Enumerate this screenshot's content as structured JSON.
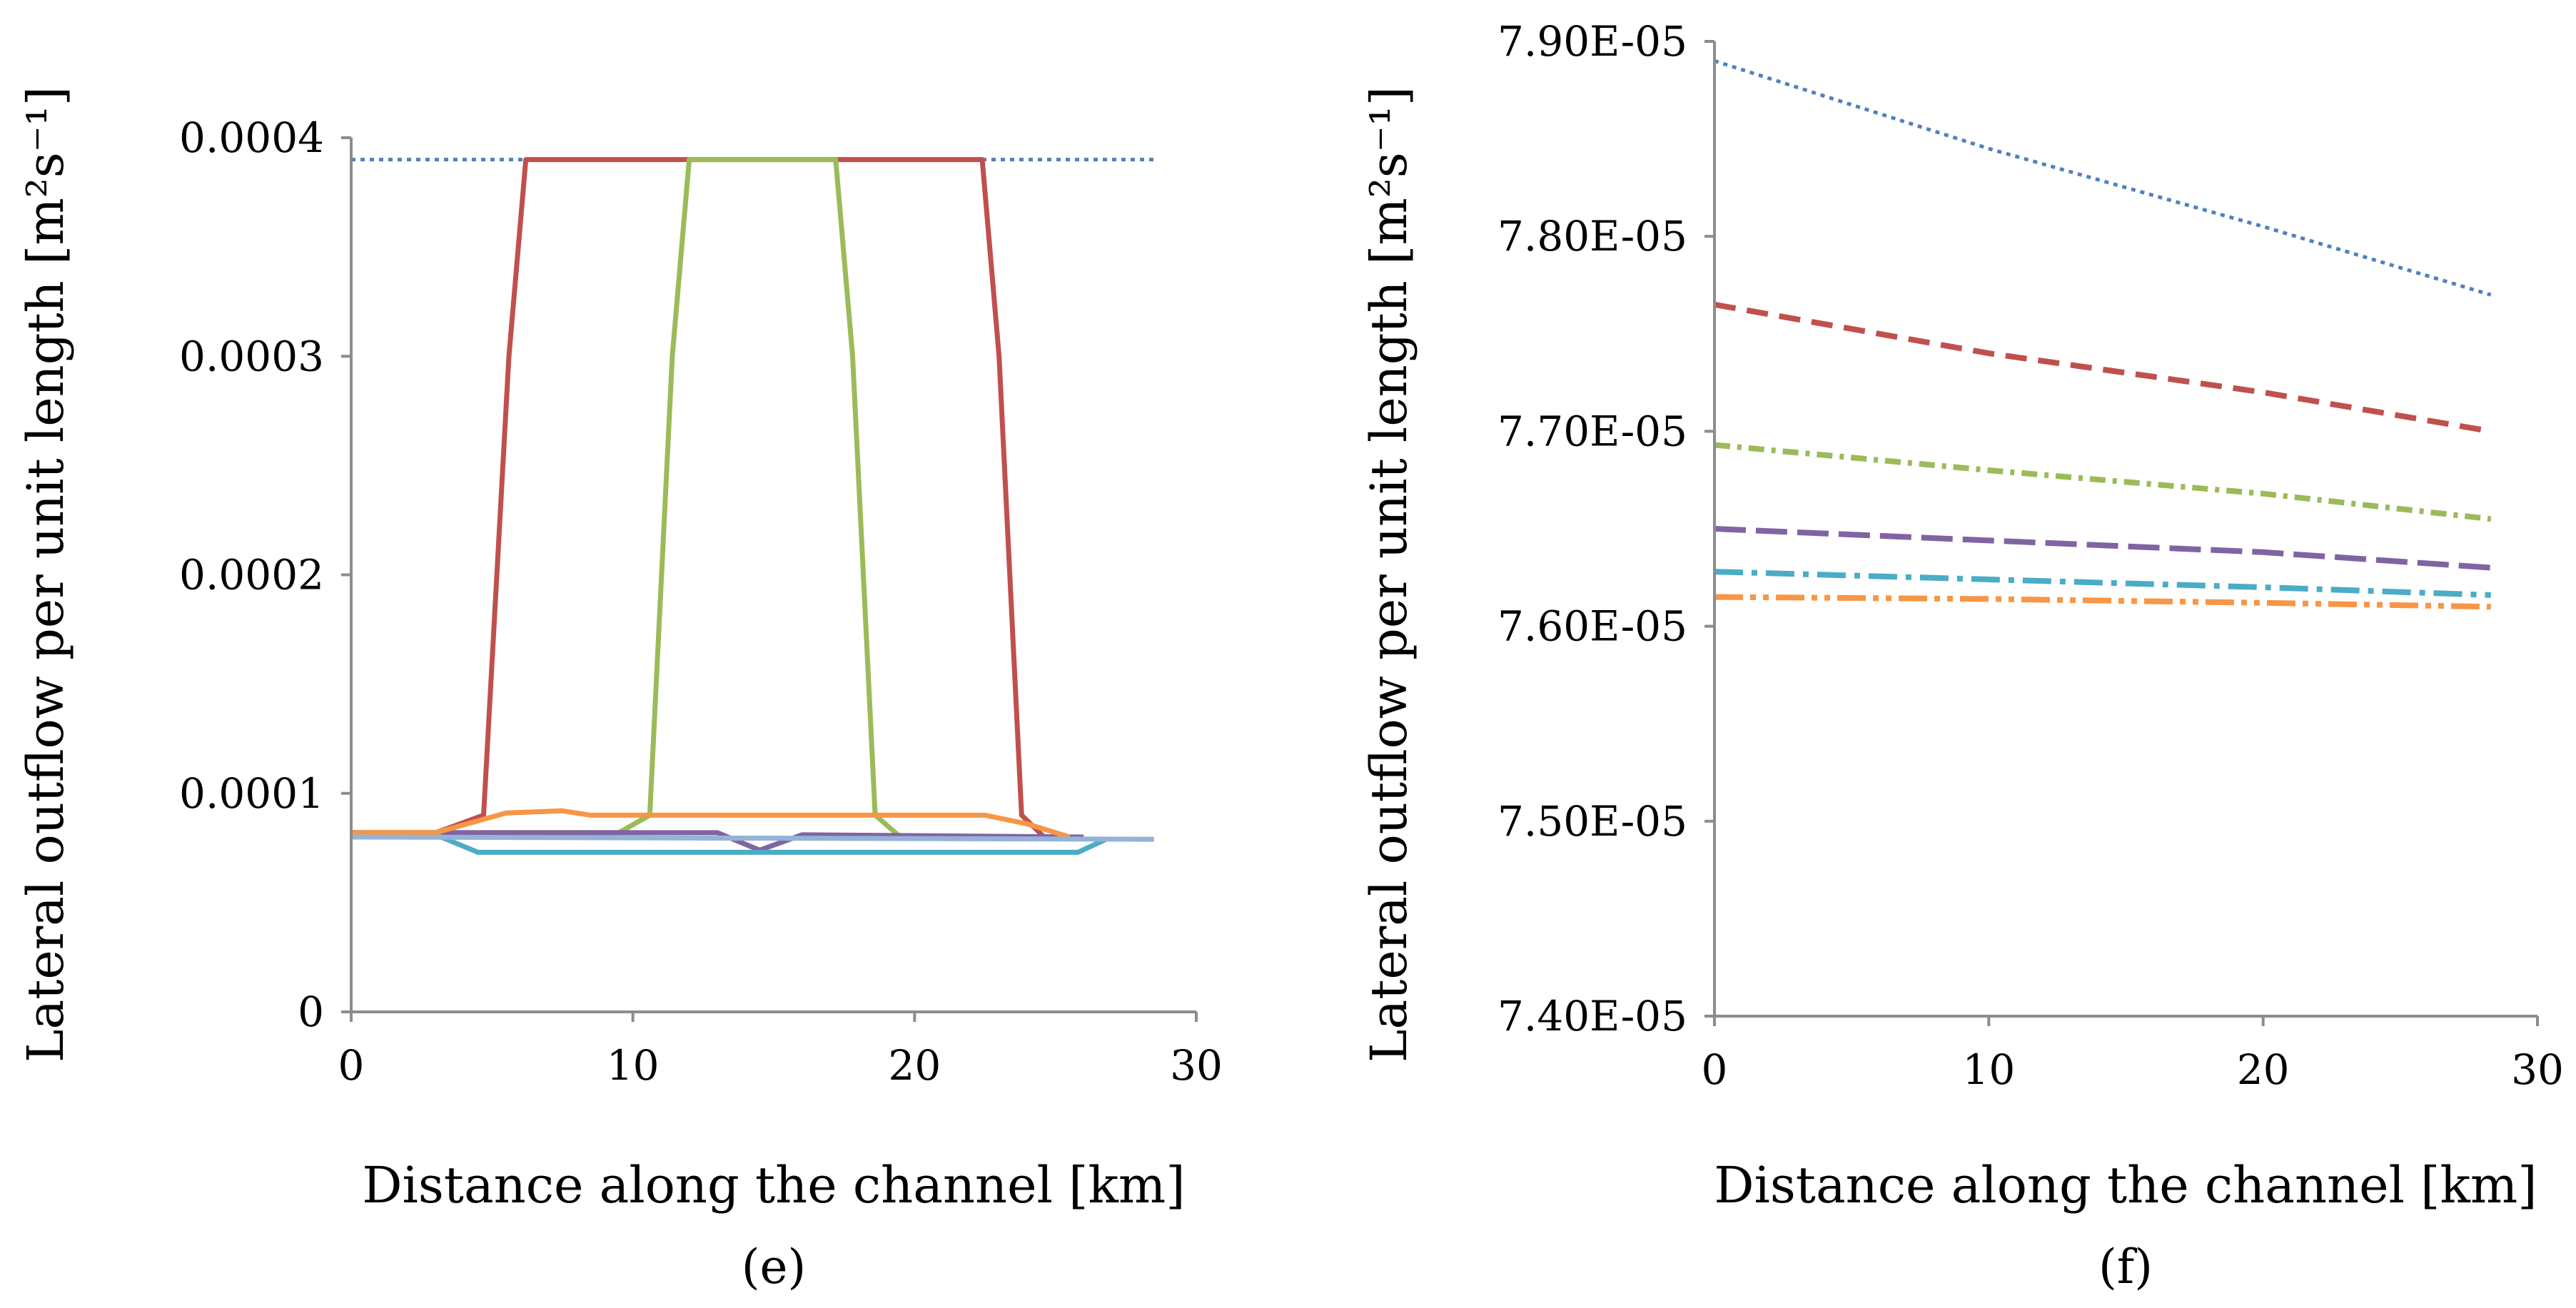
{
  "chart_data": [
    {
      "type": "line",
      "panel_label": "(e)",
      "xlabel": "Distance along the channel [km]",
      "ylabel": "Lateral outflow per unit length [m²s⁻¹]",
      "xlim": [
        0,
        30
      ],
      "ylim": [
        0,
        0.0004
      ],
      "xticks": [
        0,
        10,
        20,
        30
      ],
      "xtick_labels": [
        "0",
        "10",
        "20",
        "30"
      ],
      "yticks": [
        0,
        0.0001,
        0.0002,
        0.0003,
        0.0004
      ],
      "ytick_labels": [
        "0",
        "0.0001",
        "0.0002",
        "0.0003",
        "0.0004"
      ],
      "grid": false,
      "series": [
        {
          "color": "#4F81BD",
          "style": "dotted",
          "x": [
            0,
            28.5
          ],
          "y": [
            0.00039,
            0.00039
          ]
        },
        {
          "color": "#C0504D",
          "style": "solid",
          "x": [
            0,
            3.0,
            4.7,
            5.6,
            6.2,
            22.4,
            23.0,
            23.8,
            24.6,
            26.0
          ],
          "y": [
            8.2e-05,
            8.2e-05,
            9e-05,
            0.0003,
            0.00039,
            0.00039,
            0.0003,
            9e-05,
            8e-05,
            8e-05
          ]
        },
        {
          "color": "#9BBB59",
          "style": "solid",
          "x": [
            0,
            9.5,
            10.6,
            11.4,
            12.0,
            17.2,
            17.8,
            18.6,
            19.5,
            26.0
          ],
          "y": [
            8.2e-05,
            8.2e-05,
            9e-05,
            0.0003,
            0.00039,
            0.00039,
            0.0003,
            9e-05,
            8e-05,
            8e-05
          ]
        },
        {
          "color": "#8064A2",
          "style": "solid",
          "x": [
            0,
            13.0,
            14.5,
            16.0,
            26.0
          ],
          "y": [
            8.2e-05,
            8.2e-05,
            7.4e-05,
            8.1e-05,
            8e-05
          ]
        },
        {
          "color": "#4BACC6",
          "style": "solid",
          "x": [
            0,
            3.0,
            4.5,
            25.8,
            26.8
          ],
          "y": [
            8.1e-05,
            8.1e-05,
            7.3e-05,
            7.3e-05,
            7.9e-05
          ]
        },
        {
          "color": "#F79646",
          "style": "solid",
          "x": [
            0,
            3.0,
            5.5,
            7.5,
            8.5,
            22.5,
            24.0,
            25.5
          ],
          "y": [
            8.2e-05,
            8.2e-05,
            9.1e-05,
            9.2e-05,
            9e-05,
            9e-05,
            8.6e-05,
            8e-05
          ]
        },
        {
          "color": "#95B3D7",
          "style": "solid",
          "x": [
            0,
            28.5
          ],
          "y": [
            8e-05,
            7.9e-05
          ]
        }
      ]
    },
    {
      "type": "line",
      "panel_label": "(f)",
      "xlabel": "Distance along the channel [km]",
      "ylabel": "Lateral outflow per unit length [m²s⁻¹]",
      "xlim": [
        0,
        30
      ],
      "ylim": [
        7.4e-05,
        7.9e-05
      ],
      "xticks": [
        0,
        10,
        20,
        30
      ],
      "xtick_labels": [
        "0",
        "10",
        "20",
        "30"
      ],
      "yticks": [
        7.4e-05,
        7.5e-05,
        7.6e-05,
        7.7e-05,
        7.8e-05,
        7.9e-05
      ],
      "ytick_labels": [
        "7.40E-05",
        "7.50E-05",
        "7.60E-05",
        "7.70E-05",
        "7.80E-05",
        "7.90E-05"
      ],
      "grid": false,
      "series": [
        {
          "color": "#4F81BD",
          "style": "dotted",
          "x": [
            0,
            10,
            20,
            28.3
          ],
          "y": [
            7.89e-05,
            7.845e-05,
            7.805e-05,
            7.77e-05
          ]
        },
        {
          "color": "#C0504D",
          "style": "dashed",
          "x": [
            0,
            10,
            20,
            28.3
          ],
          "y": [
            7.765e-05,
            7.74e-05,
            7.72e-05,
            7.7e-05
          ]
        },
        {
          "color": "#9BBB59",
          "style": "dashdot",
          "x": [
            0,
            10,
            20,
            28.3
          ],
          "y": [
            7.693e-05,
            7.68e-05,
            7.668e-05,
            7.655e-05
          ]
        },
        {
          "color": "#8064A2",
          "style": "longdash",
          "x": [
            0,
            10,
            20,
            28.3
          ],
          "y": [
            7.65e-05,
            7.644e-05,
            7.638e-05,
            7.63e-05
          ]
        },
        {
          "color": "#4BACC6",
          "style": "longdashdot",
          "x": [
            0,
            10,
            20,
            28.3
          ],
          "y": [
            7.628e-05,
            7.624e-05,
            7.62e-05,
            7.616e-05
          ]
        },
        {
          "color": "#F79646",
          "style": "longdashdotdot",
          "x": [
            0,
            10,
            20,
            28.3
          ],
          "y": [
            7.615e-05,
            7.614e-05,
            7.612e-05,
            7.61e-05
          ]
        }
      ]
    }
  ]
}
